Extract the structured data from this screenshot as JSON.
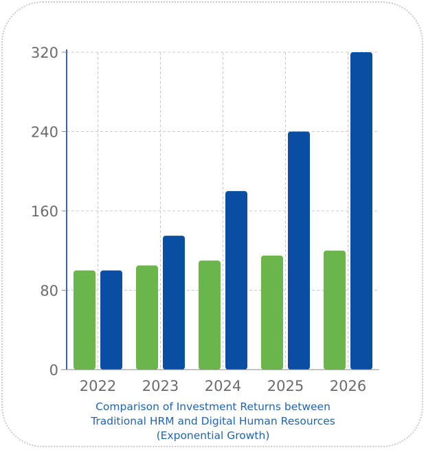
{
  "chart_data": {
    "type": "bar",
    "categories": [
      "2022",
      "2023",
      "2024",
      "2025",
      "2026"
    ],
    "series": [
      {
        "values": [
          100,
          105,
          110,
          115,
          120
        ],
        "color": "#6ab64d"
      },
      {
        "values": [
          100,
          135,
          180,
          240,
          320
        ],
        "color": "#0a4ea3"
      }
    ],
    "y_ticks": [
      "0",
      "80",
      "160",
      "240",
      "320"
    ],
    "ylim": [
      0,
      320
    ],
    "grid": true,
    "caption": [
      "Comparison of Investment Returns between",
      "Traditional HRM and Digital Human Resources",
      "(Exponential Growth)"
    ]
  }
}
